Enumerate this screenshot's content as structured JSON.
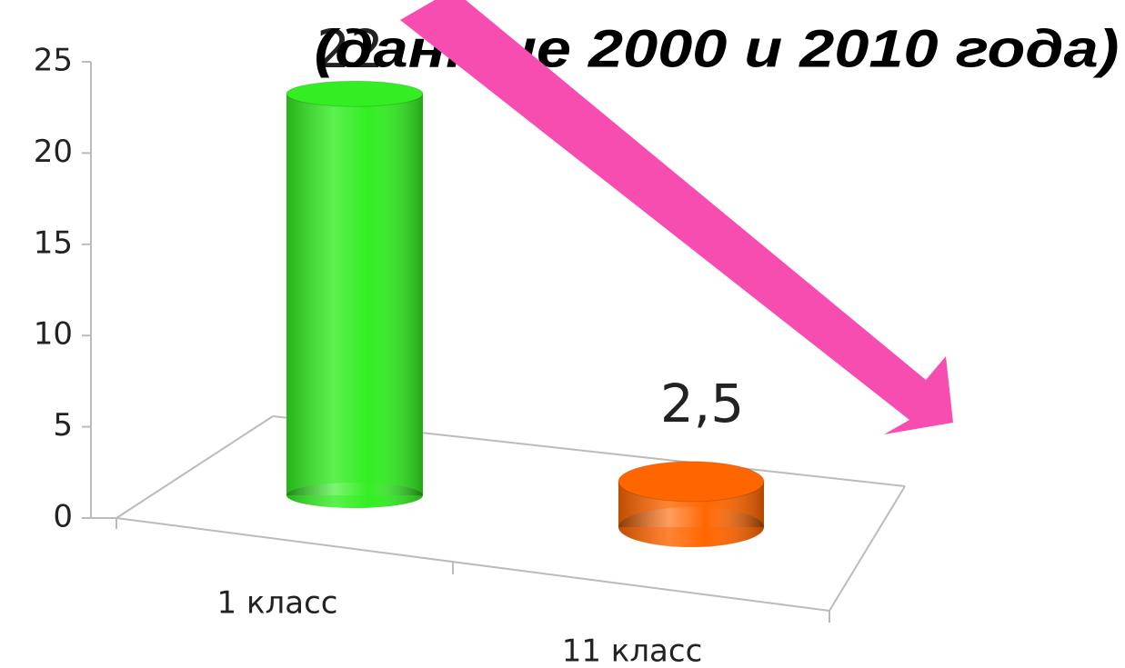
{
  "chart_data": {
    "type": "bar3d",
    "title": "(данные 2000 и 2010 года)",
    "categories": [
      "1 класс",
      "11 класс"
    ],
    "values": [
      22,
      2.5
    ],
    "value_labels": [
      "22",
      "2,5"
    ],
    "colors": [
      "#33ee22",
      "#ff6600"
    ],
    "ylim": [
      0,
      25
    ],
    "yticks": [
      0,
      5,
      10,
      15,
      20,
      25
    ]
  }
}
